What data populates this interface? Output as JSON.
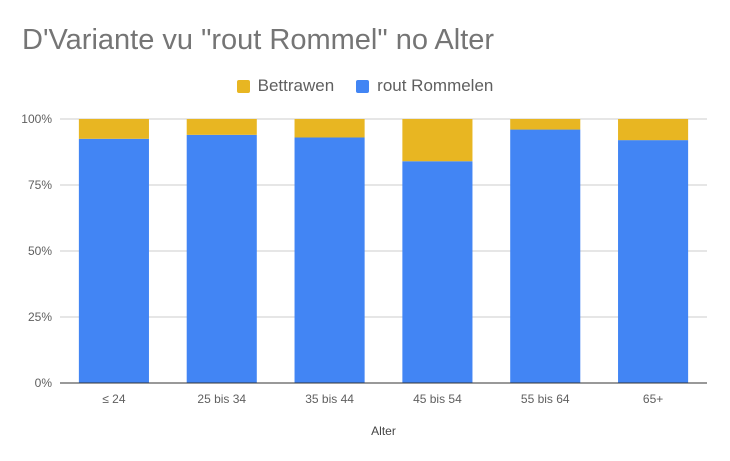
{
  "chart_data": {
    "type": "bar",
    "stacked": true,
    "title": "D'Variante vu \"rout Rommel\" no Alter",
    "xlabel": "Alter",
    "ylabel": "",
    "categories": [
      "≤ 24",
      "25 bis 34",
      "35 bis 44",
      "45 bis 54",
      "55 bis 64",
      "65+"
    ],
    "series": [
      {
        "name": "rout Rommelen",
        "color": "#4285f4",
        "values": [
          92.5,
          94,
          93,
          84,
          96,
          92
        ]
      },
      {
        "name": "Bettrawen",
        "color": "#e8b622",
        "values": [
          7.5,
          6,
          7,
          16,
          4,
          8
        ]
      }
    ],
    "legend_order": [
      "Bettrawen",
      "rout Rommelen"
    ],
    "ylim": [
      0,
      100
    ],
    "yticks": [
      "0%",
      "25%",
      "50%",
      "75%",
      "100%"
    ],
    "grid": true,
    "legend_position": "top"
  }
}
